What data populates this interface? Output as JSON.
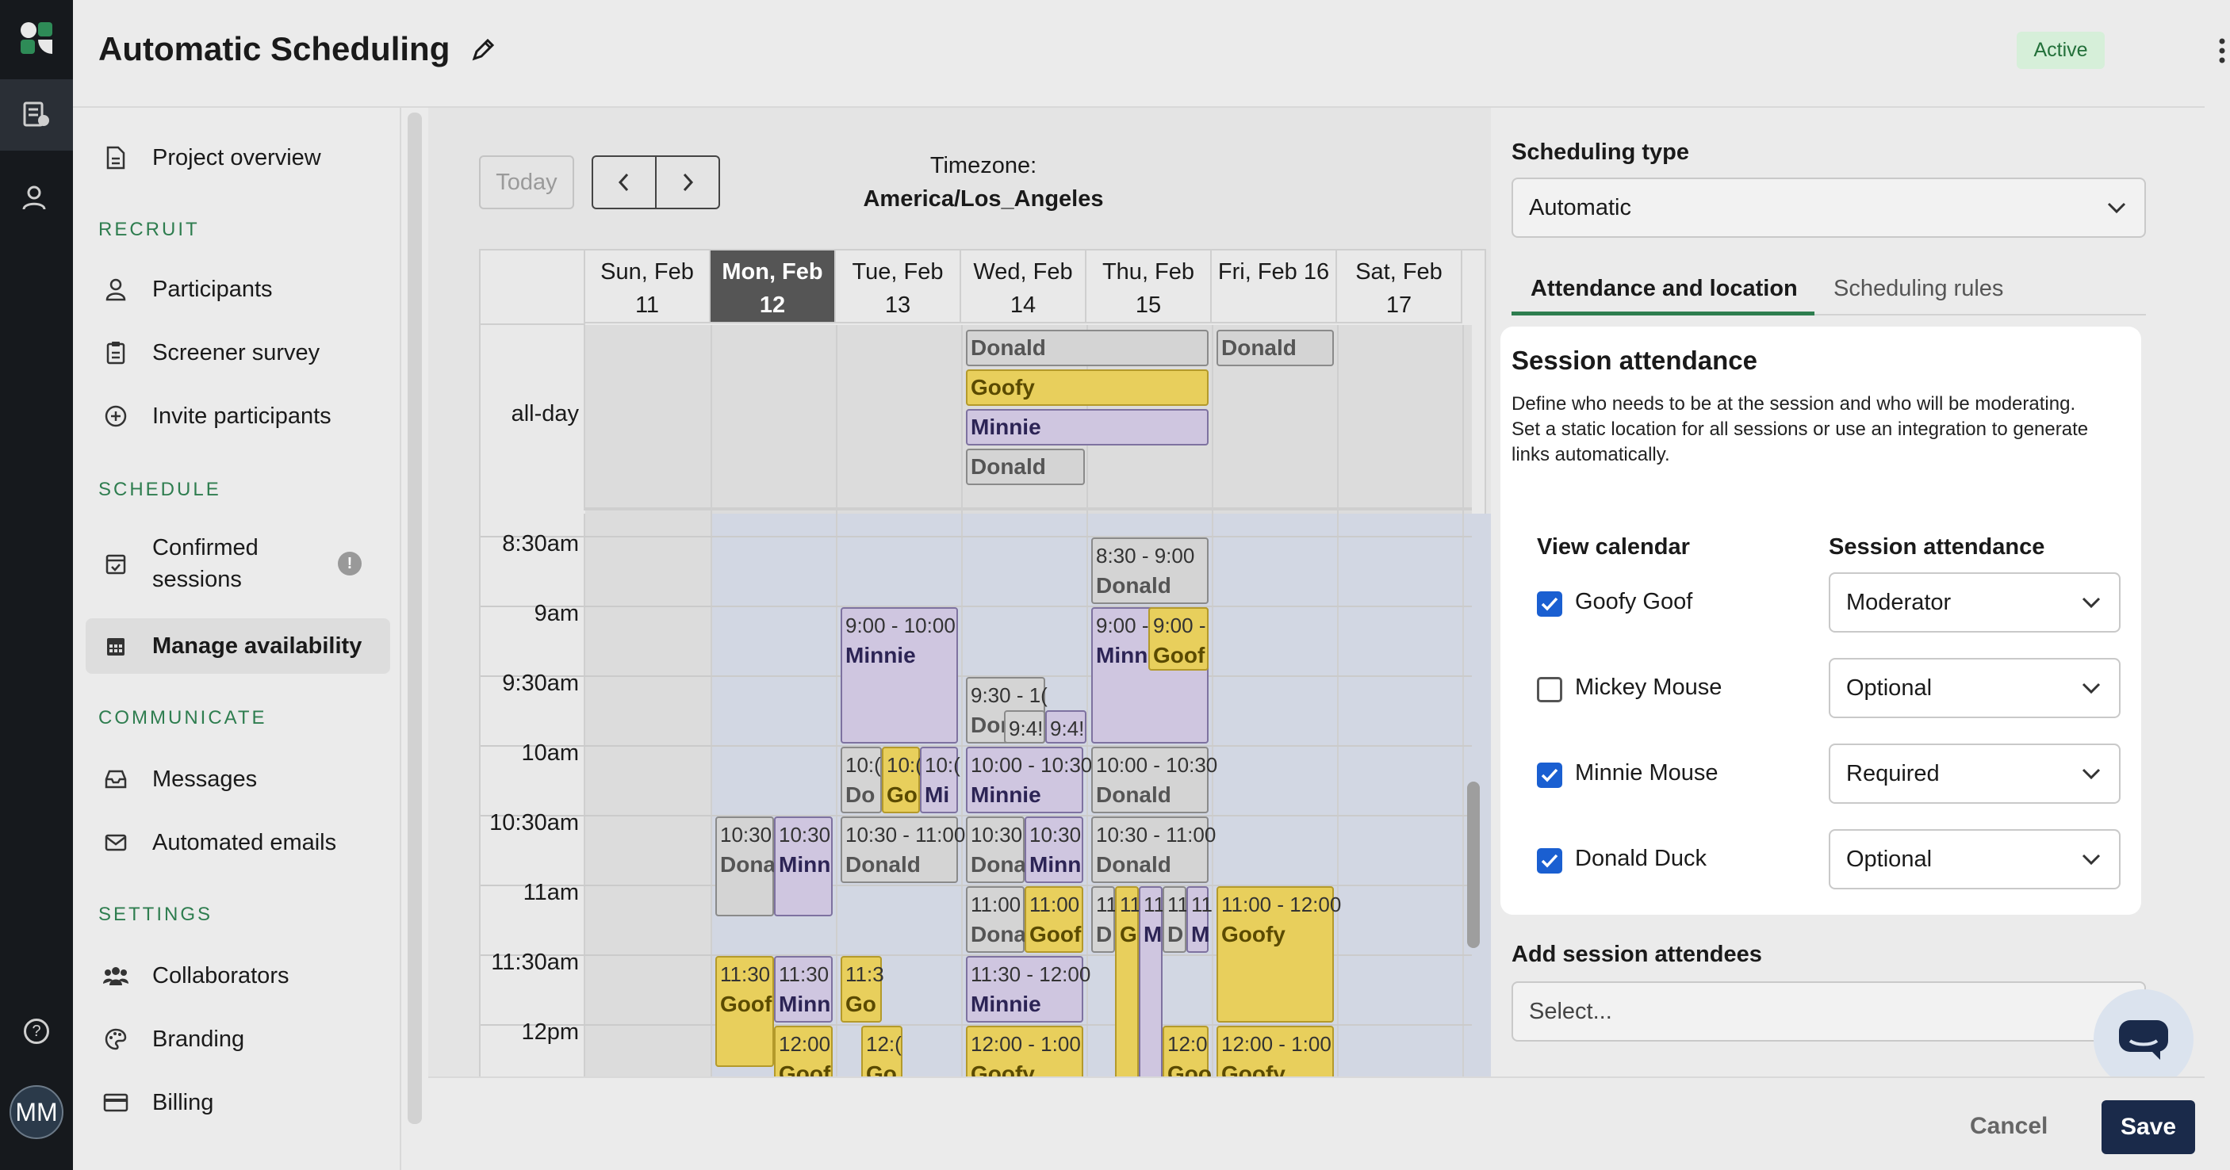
{
  "header": {
    "title": "Automatic Scheduling",
    "status": "Active"
  },
  "sidebar": {
    "project_overview": "Project overview",
    "sections": {
      "recruit": "RECRUIT",
      "schedule": "SCHEDULE",
      "communicate": "COMMUNICATE",
      "settings": "SETTINGS"
    },
    "participants": "Participants",
    "screener": "Screener survey",
    "invite": "Invite participants",
    "confirmed_1": "Confirmed",
    "confirmed_2": "sessions",
    "manage": "Manage availability",
    "messages": "Messages",
    "automated": "Automated emails",
    "collaborators": "Collaborators",
    "branding": "Branding",
    "billing": "Billing"
  },
  "rail": {
    "avatar": "MM",
    "help": "?"
  },
  "calendar": {
    "today": "Today",
    "timezone_label": "Timezone:",
    "timezone": "America/Los_Angeles",
    "days": [
      {
        "l1": "Sun, Feb",
        "l2": "11"
      },
      {
        "l1": "Mon, Feb",
        "l2": "12"
      },
      {
        "l1": "Tue, Feb",
        "l2": "13"
      },
      {
        "l1": "Wed, Feb",
        "l2": "14"
      },
      {
        "l1": "Thu, Feb",
        "l2": "15"
      },
      {
        "l1": "Fri, Feb 16",
        "l2": ""
      },
      {
        "l1": "Sat, Feb",
        "l2": "17"
      }
    ],
    "allday": "all-day",
    "times": [
      "8:30am",
      "9am",
      "9:30am",
      "10am",
      "10:30am",
      "11am",
      "11:30am",
      "12pm"
    ],
    "allday_events": {
      "wed1": "Donald",
      "wed2": "Goofy",
      "wed3": "Minnie",
      "wed4": "Donald",
      "fri1": "Donald"
    },
    "events": {
      "thu1_t": "8:30 - 9:00",
      "thu1_n": "Donald",
      "tue1_t": "9:00 - 10:00",
      "tue1_n": "Minnie",
      "thu2_t": "9:00 -",
      "thu2_n": "Minn",
      "thu3_t": "9:00 -",
      "thu3_n": "Goof",
      "wed1_t": "9:30 - 1(",
      "wed1_n": "Dor",
      "wed2_t": "9:4!",
      "wed3_t": "9:4!",
      "tue2_t": "10:(",
      "tue2_n": "Do",
      "tue3_t": "10:(",
      "tue3_n": "Go",
      "tue4_t": "10:(",
      "tue4_n": "Mi",
      "wed4_t": "10:00 - 10:30",
      "wed4_n": "Minnie",
      "thu4_t": "10:00 - 10:30",
      "thu4_n": "Donald",
      "mon1_t": "10:30",
      "mon1_n": "Dona",
      "mon2_t": "10:30",
      "mon2_n": "Minn",
      "tue5_t": "10:30 - 11:00",
      "tue5_n": "Donald",
      "wed5_t": "10:30",
      "wed5_n": "Dona",
      "wed6_t": "10:30",
      "wed6_n": "Minn",
      "thu5_t": "10:30 - 11:00",
      "thu5_n": "Donald",
      "wed7_t": "11:00",
      "wed7_n": "Dona",
      "wed8_t": "11:00",
      "wed8_n": "Goof",
      "thu6_t": "11",
      "thu6_n": "D",
      "thu7_t": "11",
      "thu7_n": "G",
      "thu8_t": "11",
      "thu8_n": "M",
      "thu9_t": "11",
      "thu9_n": "D",
      "thu10_t": "11",
      "thu10_n": "M",
      "fri1_t": "11:00 - 12:00",
      "fri1_n": "Goofy",
      "mon3_t": "11:30",
      "mon3_n": "Goof",
      "mon4_t": "11:30",
      "mon4_n": "Minn",
      "tue6_t": "11:3",
      "tue6_n": "Go",
      "wed9_t": "11:30 - 12:00",
      "wed9_n": "Minnie",
      "mon5_t": "12:00",
      "mon5_n": "Goof",
      "tue7_t": "12:(",
      "tue7_n": "Go",
      "wed10_t": "12:00 - 1:00",
      "wed10_n": "Goofy",
      "thu11_t": "12:0",
      "thu11_n": "Goo",
      "fri2_t": "12:00 - 1:00",
      "fri2_n": "Goofy"
    }
  },
  "right": {
    "scheduling_type_label": "Scheduling type",
    "scheduling_type_value": "Automatic",
    "tab_attendance": "Attendance and location",
    "tab_rules": "Scheduling rules",
    "card_title": "Session attendance",
    "card_desc_1": "Define who needs to be at the session and who will be moderating.",
    "card_desc_2": "Set a static location for all sessions or use an integration to generate",
    "card_desc_3": "links automatically.",
    "col_view": "View calendar",
    "col_attendance": "Session attendance",
    "rows": [
      {
        "name": "Goofy Goof",
        "value": "Moderator",
        "checked": true
      },
      {
        "name": "Mickey Mouse",
        "value": "Optional",
        "checked": false
      },
      {
        "name": "Minnie Mouse",
        "value": "Required",
        "checked": true
      },
      {
        "name": "Donald Duck",
        "value": "Optional",
        "checked": true
      }
    ],
    "add_label": "Add session attendees",
    "add_placeholder": "Select..."
  },
  "footer": {
    "cancel": "Cancel",
    "save": "Save"
  },
  "colors": {
    "goofy": "#e8cf5c",
    "minnie": "#cfc6e0",
    "donald": "#d4d4d4",
    "accent": "#1a2a4a",
    "checkbox": "#1a5fd1"
  }
}
